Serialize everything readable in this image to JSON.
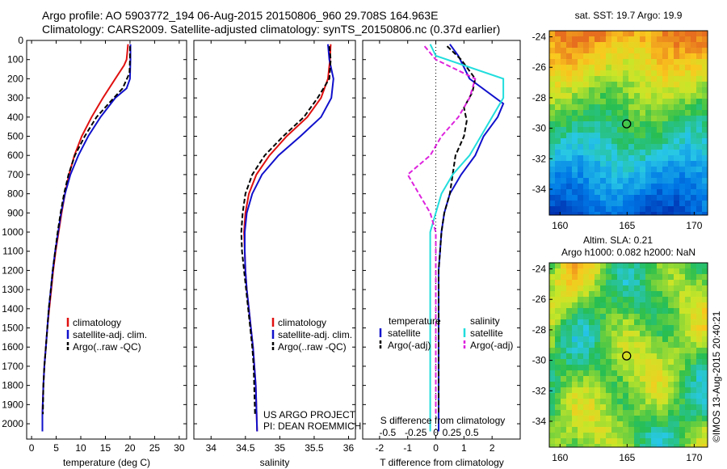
{
  "header": {
    "line1": "Argo profile: AO 5903772_194 06-Aug-2015 20150806_960 29.708S 164.963E",
    "line2": "Climatology: CARS2009. Satellite-adjusted climatology: synTS_20150806.nc (0.37d earlier)"
  },
  "watermark": "©IMOS 13-Aug-2015 20:40:21",
  "credits": {
    "line1": "US ARGO PROJECT",
    "line2": "PI: DEAN ROEMMICH"
  },
  "colors": {
    "climatology": "#e01010",
    "satellite": "#1010cc",
    "argo": "#000000",
    "sal_sat": "#22dddd",
    "sal_argo": "#dd22dd"
  },
  "chart_data": [
    {
      "type": "line",
      "name": "temperature",
      "xlabel": "temperature (deg C)",
      "ylabel": "",
      "xlim": [
        -1,
        31.5
      ],
      "ylim": [
        2080,
        0
      ],
      "xticks": [
        0,
        5,
        10,
        15,
        20,
        25,
        30
      ],
      "yticks": [
        0,
        100,
        200,
        300,
        400,
        500,
        600,
        700,
        800,
        900,
        1000,
        1100,
        1200,
        1300,
        1400,
        1500,
        1600,
        1700,
        1800,
        1900,
        2000
      ],
      "legend": [
        "climatology",
        "satellite-adj. clim.",
        "Argo(..raw -QC)"
      ],
      "series": [
        {
          "name": "climatology",
          "style": "solid",
          "color": "#e01010",
          "x": [
            19.6,
            19.3,
            18.8,
            17.0,
            14.5,
            12.2,
            10.2,
            8.7,
            7.6,
            6.8,
            6.1,
            5.5,
            4.9,
            4.4,
            4.0,
            3.6,
            3.2,
            2.9,
            2.6,
            2.4,
            2.2,
            2.2
          ],
          "y": [
            20,
            100,
            130,
            200,
            300,
            400,
            500,
            600,
            700,
            800,
            900,
            1000,
            1100,
            1200,
            1300,
            1400,
            1500,
            1600,
            1700,
            1800,
            1950,
            2040
          ]
        },
        {
          "name": "satellite-adj. clim.",
          "style": "solid",
          "color": "#1010cc",
          "x": [
            20.1,
            20.1,
            20.0,
            19.3,
            17.0,
            14.0,
            11.5,
            9.5,
            7.9,
            6.8,
            6.0,
            5.4,
            4.8,
            4.3,
            3.9,
            3.5,
            3.2,
            2.9,
            2.6,
            2.4,
            2.2,
            2.2
          ],
          "y": [
            20,
            100,
            200,
            250,
            300,
            400,
            500,
            600,
            700,
            800,
            900,
            1000,
            1100,
            1200,
            1300,
            1400,
            1500,
            1600,
            1700,
            1800,
            1950,
            2040
          ]
        },
        {
          "name": "Argo(..raw -QC)",
          "style": "dashed",
          "color": "#000000",
          "x": [
            20.0,
            20.0,
            19.9,
            18.5,
            16.0,
            13.2,
            10.8,
            8.8,
            7.5,
            6.6,
            5.9,
            5.3,
            4.8,
            4.3,
            3.9,
            3.5,
            3.2,
            2.9,
            2.6,
            2.4,
            2.3
          ],
          "y": [
            30,
            100,
            170,
            250,
            320,
            400,
            500,
            600,
            700,
            800,
            900,
            1000,
            1100,
            1200,
            1300,
            1400,
            1500,
            1600,
            1700,
            1800,
            1950
          ]
        }
      ]
    },
    {
      "type": "line",
      "name": "salinity",
      "xlabel": "salinity",
      "ylabel": "",
      "xlim": [
        33.75,
        36.1
      ],
      "ylim": [
        2080,
        0
      ],
      "xticks": [
        34,
        34.5,
        35,
        35.5,
        36
      ],
      "legend": [
        "climatology",
        "satellite-adj. clim.",
        "Argo(..raw -QC)"
      ],
      "series": [
        {
          "name": "climatology",
          "style": "solid",
          "color": "#e01010",
          "x": [
            35.74,
            35.73,
            35.7,
            35.6,
            35.4,
            35.1,
            34.85,
            34.66,
            34.55,
            34.5,
            34.48,
            34.49,
            34.5,
            34.52,
            34.55,
            34.58,
            34.61,
            34.63,
            34.65,
            34.67
          ],
          "y": [
            20,
            100,
            200,
            300,
            400,
            500,
            600,
            700,
            800,
            900,
            1000,
            1100,
            1200,
            1300,
            1400,
            1500,
            1600,
            1700,
            1800,
            2040
          ]
        },
        {
          "name": "satellite-adj. clim.",
          "style": "solid",
          "color": "#1010cc",
          "x": [
            35.7,
            35.72,
            35.78,
            35.75,
            35.6,
            35.3,
            34.98,
            34.74,
            34.6,
            34.52,
            34.49,
            34.49,
            34.5,
            34.52,
            34.55,
            34.58,
            34.61,
            34.63,
            34.65,
            34.67
          ],
          "y": [
            20,
            100,
            200,
            300,
            400,
            500,
            600,
            700,
            800,
            900,
            1000,
            1100,
            1200,
            1300,
            1400,
            1500,
            1600,
            1700,
            1800,
            2040
          ]
        },
        {
          "name": "Argo(..raw -QC)",
          "style": "dashed",
          "color": "#000000",
          "x": [
            35.72,
            35.74,
            35.72,
            35.55,
            35.35,
            35.05,
            34.78,
            34.6,
            34.5,
            34.46,
            34.44,
            34.45,
            34.48,
            34.51,
            34.54,
            34.57,
            34.6,
            34.62,
            34.64
          ],
          "y": [
            30,
            100,
            200,
            300,
            400,
            500,
            600,
            700,
            800,
            900,
            1000,
            1100,
            1200,
            1300,
            1400,
            1500,
            1600,
            1700,
            1950
          ]
        }
      ]
    },
    {
      "type": "line",
      "name": "difference",
      "xlabel": "T difference from climatology",
      "xlabel_top": "S difference from climatology",
      "xlim": [
        -2.6,
        3.0
      ],
      "ylim": [
        2080,
        0
      ],
      "xticks": [
        -2,
        -1,
        0,
        1,
        2
      ],
      "xticks_s": [
        "-0.5",
        "-0.25",
        "0",
        "0.25",
        "0.5"
      ],
      "legend_headers": [
        "temperature",
        "salinity"
      ],
      "legend": [
        "satellite",
        "Argo(-adj)",
        "satellite",
        "Argo(-adj)"
      ],
      "series": [
        {
          "name": "satellite",
          "group": "temperature",
          "style": "solid",
          "color": "#1010cc",
          "x": [
            0.5,
            0.8,
            1.2,
            2.4,
            2.2,
            1.7,
            1.4,
            0.9,
            0.5,
            0.3,
            0.2,
            0.15,
            0.1,
            0.1,
            0.1,
            0.1,
            0.1,
            0.1,
            0.1,
            0.1
          ],
          "y": [
            20,
            80,
            200,
            330,
            400,
            500,
            600,
            700,
            800,
            900,
            1000,
            1100,
            1200,
            1300,
            1400,
            1500,
            1600,
            1700,
            1800,
            2040
          ]
        },
        {
          "name": "Argo(-adj)",
          "group": "temperature",
          "style": "dashed",
          "color": "#000000",
          "x": [
            0.4,
            0.9,
            1.4,
            1.3,
            1.0,
            1.1,
            1.0,
            0.7,
            0.6,
            0.5,
            0.3,
            0.2,
            0.15,
            0.1,
            0.1,
            0.1,
            0.1,
            0.1,
            0.1
          ],
          "y": [
            30,
            100,
            200,
            270,
            350,
            420,
            500,
            600,
            700,
            800,
            900,
            1000,
            1100,
            1200,
            1300,
            1400,
            1500,
            1700,
            1950
          ]
        },
        {
          "name": "satellite",
          "group": "salinity",
          "style": "solid",
          "color": "#22dddd",
          "x": [
            -0.05,
            0.0,
            0.6,
            0.6,
            0.5,
            0.4,
            0.3,
            0.15,
            0.05,
            0.0,
            -0.05,
            -0.05,
            -0.05,
            -0.05,
            -0.05,
            -0.05,
            -0.05,
            -0.05,
            -0.05,
            -0.05
          ],
          "y": [
            20,
            80,
            200,
            300,
            400,
            500,
            600,
            700,
            800,
            900,
            1000,
            1100,
            1200,
            1300,
            1400,
            1500,
            1600,
            1700,
            1800,
            2040
          ]
        },
        {
          "name": "Argo(-adj)",
          "group": "salinity",
          "style": "dashed",
          "color": "#dd22dd",
          "x": [
            -0.1,
            0.0,
            0.35,
            0.3,
            0.2,
            0.05,
            -0.05,
            -0.25,
            -0.15,
            -0.05,
            0.0,
            0.0,
            0.0,
            0.0,
            0.0,
            0.0,
            0.0
          ],
          "y": [
            30,
            100,
            200,
            300,
            400,
            500,
            600,
            700,
            800,
            900,
            1000,
            1100,
            1200,
            1400,
            1600,
            1800,
            1950
          ]
        }
      ]
    },
    {
      "type": "heatmap",
      "name": "sst-map",
      "title": "sat. SST: 19.7 Argo: 19.9",
      "xlim": [
        159.2,
        171
      ],
      "ylim": [
        -35.7,
        -23.6
      ],
      "xticks": [
        160,
        165,
        170
      ],
      "yticks": [
        -24,
        -26,
        -28,
        -30,
        -32,
        -34
      ],
      "marker": {
        "lon": 164.963,
        "lat": -29.708
      }
    },
    {
      "type": "heatmap",
      "name": "sla-map",
      "title": "Altim. SLA: 0.21",
      "subtitle": "Argo h1000: 0.082 h2000: NaN",
      "xlim": [
        159.2,
        171
      ],
      "ylim": [
        -35.7,
        -23.6
      ],
      "xticks": [
        160,
        165,
        170
      ],
      "yticks": [
        -24,
        -26,
        -28,
        -30,
        -32,
        -34
      ],
      "marker": {
        "lon": 164.963,
        "lat": -29.708
      }
    }
  ]
}
